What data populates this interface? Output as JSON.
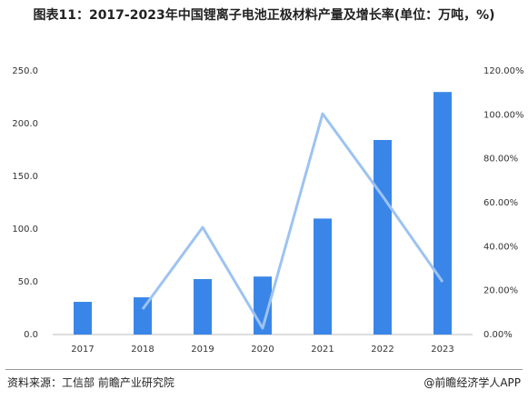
{
  "chart_data": {
    "type": "bar-line",
    "title": "图表11：2017-2023年中国锂离子电池正极材料产量及增长率(单位：万吨，%)",
    "categories": [
      "2017",
      "2018",
      "2019",
      "2020",
      "2021",
      "2022",
      "2023"
    ],
    "series": [
      {
        "type": "bar",
        "color": "#3a86e8",
        "values": [
          31,
          35.3,
          52.6,
          55,
          110,
          184.5,
          230
        ]
      },
      {
        "type": "line",
        "color": "#9dc3f0",
        "axis": "y2",
        "values": [
          null,
          11.6,
          48.8,
          2.9,
          100.5,
          63,
          24
        ]
      }
    ],
    "ylim": [
      0,
      250
    ],
    "yticks": [
      {
        "value": 0,
        "label": "0.0"
      },
      {
        "value": 50,
        "label": "50.0"
      },
      {
        "value": 100,
        "label": "100.0"
      },
      {
        "value": 150,
        "label": "150.0"
      },
      {
        "value": 200,
        "label": "200.0"
      },
      {
        "value": 250,
        "label": "250.0"
      }
    ],
    "y2lim": [
      0,
      120
    ],
    "y2ticks": [
      {
        "value": 0,
        "label": "0.00%"
      },
      {
        "value": 20,
        "label": "20.00%"
      },
      {
        "value": 40,
        "label": "40.00%"
      },
      {
        "value": 60,
        "label": "60.00%"
      },
      {
        "value": 80,
        "label": "80.00%"
      },
      {
        "value": 100,
        "label": "100.00%"
      },
      {
        "value": 120,
        "label": "120.00%"
      }
    ],
    "grid": false,
    "source": "资料来源：工信部 前瞻产业研究院",
    "credit": "@前瞻经济学人APP"
  }
}
